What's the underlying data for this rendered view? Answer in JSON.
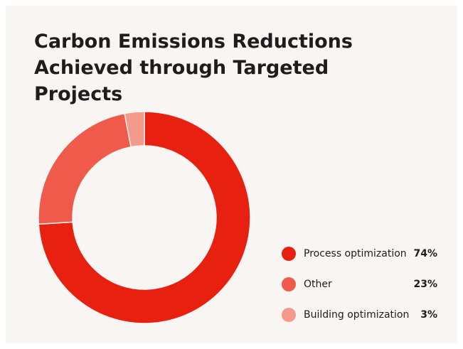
{
  "chart_data": {
    "type": "donut",
    "title": "Carbon Emissions Reductions Achieved through Targeted Projects",
    "categories": [
      "Process optimization",
      "Other",
      "Building optimization"
    ],
    "values": [
      74,
      23,
      3
    ],
    "value_labels": [
      "74%",
      "23%",
      "3%"
    ],
    "colors": [
      "#e8200f",
      "#f05a4a",
      "#f59a8b"
    ],
    "legend": "right"
  }
}
